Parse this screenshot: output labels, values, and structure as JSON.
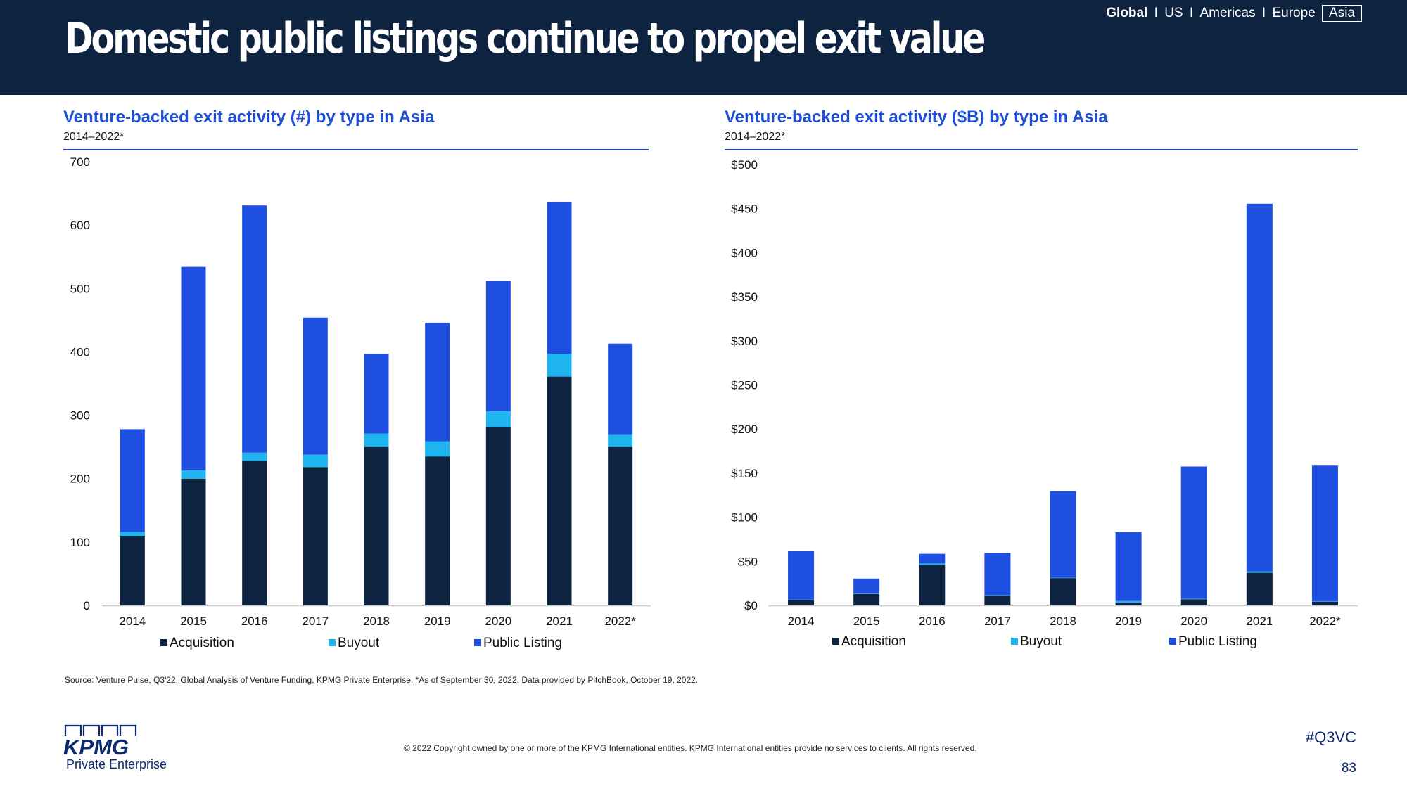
{
  "title": "Domestic public listings continue to propel exit value",
  "nav": {
    "global": "Global",
    "sep": "I",
    "us": "US",
    "americas": "Americas",
    "europe": "Europe",
    "asia": "Asia"
  },
  "colors": {
    "header_bg": "#0d2340",
    "acquisition": "#0d2340",
    "buyout": "#1eb4f0",
    "public_listing": "#1f4fe0",
    "title_blue": "#1f4fd8"
  },
  "chart_data": [
    {
      "type": "bar",
      "stacked": true,
      "title": "Venture-backed exit activity (#) by type in Asia",
      "subtitle": "2014–2022*",
      "categories": [
        "2014",
        "2015",
        "2016",
        "2017",
        "2018",
        "2019",
        "2020",
        "2021",
        "2022*"
      ],
      "series": [
        {
          "name": "Acquisition",
          "color": "#0d2340",
          "values": [
            109,
            200,
            228,
            218,
            250,
            235,
            281,
            361,
            250
          ]
        },
        {
          "name": "Buyout",
          "color": "#1eb4f0",
          "values": [
            7,
            13,
            13,
            20,
            21,
            24,
            25,
            36,
            20
          ]
        },
        {
          "name": "Public Listing",
          "color": "#1f4fe0",
          "values": [
            162,
            321,
            390,
            216,
            126,
            187,
            206,
            239,
            143
          ]
        }
      ],
      "yticks": [
        "0",
        "100",
        "200",
        "300",
        "400",
        "500",
        "600",
        "700"
      ],
      "ylim": [
        0,
        700
      ],
      "legend": "bottom"
    },
    {
      "type": "bar",
      "stacked": true,
      "title": "Venture-backed exit activity ($B) by type in Asia",
      "subtitle": "2014–2022*",
      "categories": [
        "2014",
        "2015",
        "2016",
        "2017",
        "2018",
        "2019",
        "2020",
        "2021",
        "2022*"
      ],
      "series": [
        {
          "name": "Acquisition",
          "color": "#0d2340",
          "values": [
            6,
            13,
            46,
            11,
            31,
            3,
            7,
            37,
            4
          ]
        },
        {
          "name": "Buyout",
          "color": "#1eb4f0",
          "values": [
            0.5,
            0.5,
            1.5,
            0.5,
            0.5,
            2,
            0.5,
            1.5,
            0.5
          ]
        },
        {
          "name": "Public Listing",
          "color": "#1f4fe0",
          "values": [
            55,
            17,
            11,
            48,
            98,
            78,
            150,
            417,
            154
          ]
        }
      ],
      "yticks": [
        "$0",
        "$50",
        "$100",
        "$150",
        "$200",
        "$250",
        "$300",
        "$350",
        "$400",
        "$450",
        "$500"
      ],
      "ylim": [
        0,
        500
      ],
      "legend": "bottom"
    }
  ],
  "footer": {
    "source": "Source: Venture Pulse, Q3'22, Global Analysis of Venture Funding, KPMG Private Enterprise. *As of September 30, 2022. Data provided by PitchBook, October 19, 2022.",
    "copyright": "© 2022 Copyright owned by one or more of the KPMG International entities. KPMG International entities provide no services to clients. All rights reserved.",
    "logo_text": "KPMG",
    "logo_sub": "Private Enterprise",
    "hashtag": "#Q3VC",
    "page": "83"
  }
}
